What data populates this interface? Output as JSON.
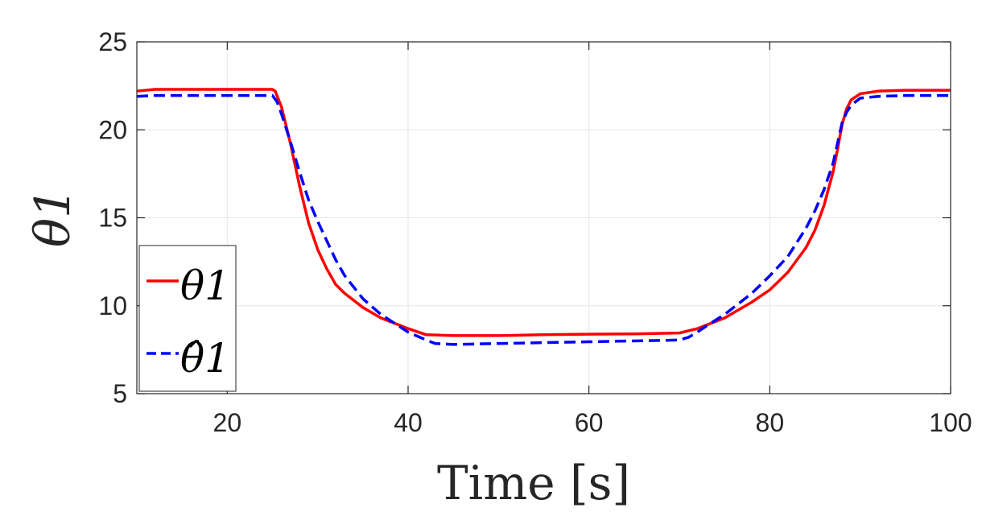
{
  "chart_data": {
    "type": "line",
    "xlabel": "Time [s]",
    "ylabel": "θ1",
    "xlim": [
      10,
      100
    ],
    "ylim": [
      5,
      25
    ],
    "xticks": [
      20,
      40,
      60,
      80,
      100
    ],
    "yticks": [
      5,
      10,
      15,
      20,
      25
    ],
    "grid": true,
    "legend": {
      "placement": "bottom-left",
      "entries": [
        "θ1",
        "θ̂1"
      ]
    },
    "series": [
      {
        "name": "θ1",
        "color": "#ff0000",
        "style": "solid",
        "x": [
          10,
          12,
          15,
          20,
          24,
          25,
          25.3,
          26,
          27,
          28,
          29,
          30,
          31,
          32,
          33,
          35,
          37,
          40,
          42,
          45,
          50,
          55,
          60,
          65,
          70,
          72,
          75,
          78,
          80,
          82,
          84,
          85,
          86,
          87,
          87.5,
          88,
          88.5,
          89,
          90,
          92,
          95,
          100
        ],
        "y": [
          22.2,
          22.3,
          22.3,
          22.3,
          22.3,
          22.3,
          22.2,
          21.3,
          19.2,
          16.8,
          14.7,
          13.2,
          12.1,
          11.2,
          10.7,
          9.9,
          9.3,
          8.7,
          8.35,
          8.3,
          8.3,
          8.35,
          8.38,
          8.4,
          8.45,
          8.7,
          9.3,
          10.2,
          10.9,
          11.9,
          13.3,
          14.3,
          15.7,
          17.6,
          18.9,
          20.3,
          21.2,
          21.7,
          22.05,
          22.2,
          22.25,
          22.25
        ]
      },
      {
        "name": "θ̂1",
        "color": "#0000ff",
        "style": "dashed",
        "x": [
          10,
          12,
          15,
          20,
          24,
          25,
          25.5,
          26,
          27,
          28,
          29,
          30,
          31,
          32,
          33,
          35,
          37,
          40,
          42,
          43,
          45,
          50,
          55,
          60,
          65,
          70,
          71,
          72,
          73,
          75,
          78,
          80,
          82,
          84,
          85,
          86,
          87,
          88,
          88.5,
          89,
          90,
          92,
          95,
          100
        ],
        "y": [
          21.9,
          21.95,
          21.95,
          21.95,
          21.95,
          21.95,
          21.6,
          20.9,
          19.3,
          17.6,
          16.0,
          14.8,
          13.7,
          12.6,
          11.7,
          10.4,
          9.5,
          8.5,
          8.05,
          7.85,
          7.8,
          7.85,
          7.9,
          7.95,
          8.0,
          8.05,
          8.2,
          8.5,
          8.85,
          9.5,
          10.7,
          11.7,
          12.8,
          14.4,
          15.4,
          16.6,
          18.1,
          20.4,
          21.0,
          21.4,
          21.8,
          21.9,
          21.95,
          21.95
        ]
      }
    ]
  }
}
